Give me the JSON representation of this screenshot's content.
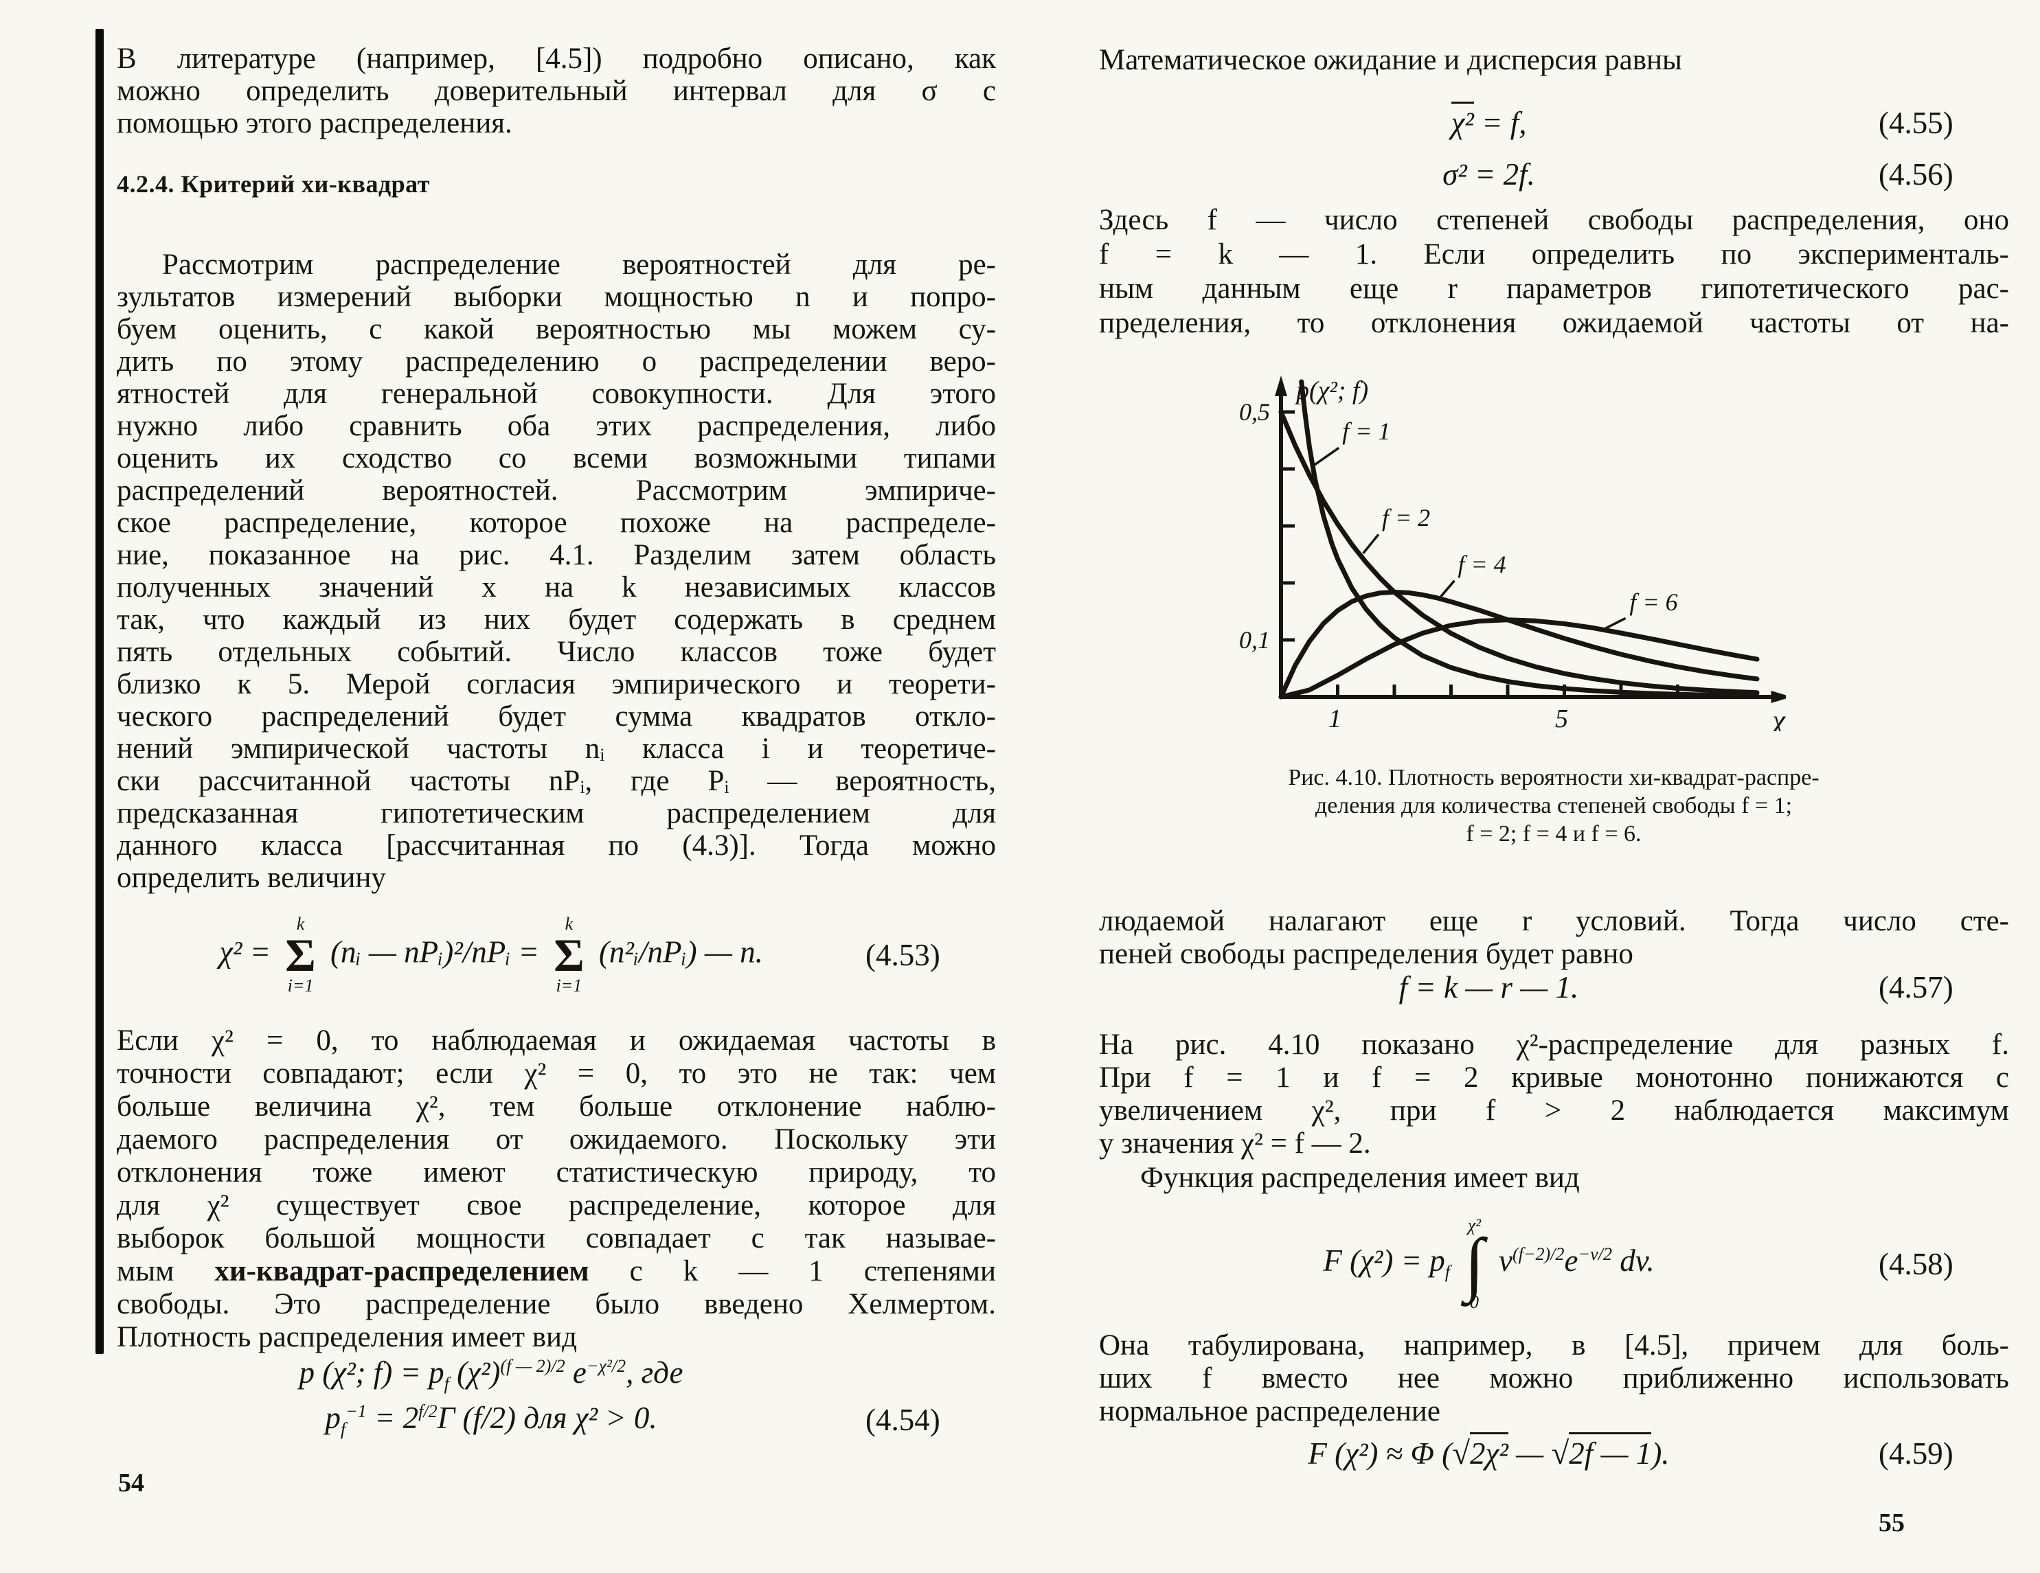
{
  "left": {
    "page_number": "54",
    "intro_lines": [
      "В литературе (например, [4.5]) подробно описано, как",
      "можно определить доверительный интервал для σ с",
      "помощью этого распределения."
    ],
    "heading": "4.2.4. Критерий хи-квадрат",
    "para1_lines": [
      "Рассмотрим распределение вероятностей для ре-",
      "зультатов измерений выборки мощностью n и попро-",
      "буем оценить, с какой вероятностью мы можем су-",
      "дить по этому распределению о распределении веро-",
      "ятностей для генеральной совокупности. Для этого",
      "нужно либо сравнить оба этих распределения, либо",
      "оценить их сходство со всеми возможными типами",
      "распределений вероятностей. Рассмотрим эмпириче-",
      "ское распределение, которое похоже на распределе-",
      "ние, показанное на рис. 4.1. Разделим затем область",
      "полученных значений x на k независимых классов",
      "так, что каждый из них будет содержать в среднем",
      "пять отдельных событий. Число классов тоже будет",
      "близко к 5. Мерой согласия эмпирического и теорети-",
      "ческого распределений будет сумма квадратов откло-",
      "нений эмпирической частоты nᵢ класса i и теоретиче-",
      "ски рассчитанной частоты nPᵢ, где Pᵢ — вероятность,",
      "предсказанная гипотетическим распределением для",
      "данного класса [рассчитанная по (4.3)]. Тогда можно",
      "определить величину"
    ],
    "eq453": {
      "lhs": "χ² =",
      "sum_top": "k",
      "sum_sym": "Σ",
      "sum_bot": "i=1",
      "mid": "(nᵢ — nPᵢ)²/nPᵢ =",
      "post": "(n²ᵢ/nPᵢ) — n.",
      "num": "(4.53)"
    },
    "para2a_lines": [
      "Если χ² = 0, то наблюдаемая и ожидаемая частоты в",
      "точности совпадают; если χ² = 0, то это не так: чем",
      "больше величина χ², тем больше отклонение наблю-",
      "даемого распределения от ожидаемого. Поскольку эти",
      "отклонения тоже имеют статистическую природу, то",
      "для χ² существует свое распределение, которое для",
      "выборок большой мощности совпадает с так называе-"
    ],
    "bold_line": {
      "pre": "мым ",
      "bold": "хи-квадрат-распределением",
      "post": " с k — 1 степенями"
    },
    "para2b_lines": [
      "свободы. Это распределение было введено Хелмертом.",
      "Плотность распределения имеет вид"
    ],
    "eq454": {
      "a": "p (χ²; f) = p",
      "asub": "f",
      "b": " (χ²)",
      "bexp": "(f — 2)/2",
      "c": " e",
      "cexp": "−χ²/2",
      "d": ",  где",
      "e1": "p",
      "e1sub": "f",
      "e1sup": "−1",
      "e2": " = 2",
      "e2exp": "f/2",
      "e3": "Γ (f/2)  для  χ² > 0.",
      "num": "(4.54)"
    }
  },
  "right": {
    "page_number": "55",
    "lead_line": "Математическое ожидание и дисперсия равны",
    "eq455": {
      "over": "χ²",
      "rest": " = f,",
      "num": "(4.55)"
    },
    "eq456": {
      "body": "σ² = 2f.",
      "num": "(4.56)"
    },
    "para_f_lines": [
      "Здесь f — число степеней свободы распределения, оно",
      "f = k — 1. Если определить по эксперименталь-",
      "ным данным еще r параметров гипотетического рас-",
      "пределения, то отклонения ожидаемой частоты от на-"
    ],
    "figure_caption_lines": [
      "Рис. 4.10. Плотность вероятности хи-квадрат-распре-",
      "деления для количества степеней свободы f = 1;",
      "f = 2; f = 4 и f = 6."
    ],
    "para_obs_lines": [
      "людаемой налагают еще r условий. Тогда число сте-",
      "пеней свободы распределения будет равно"
    ],
    "eq457": {
      "body": "f = k — r — 1.",
      "num": "(4.57)"
    },
    "para_fig_lines": [
      "На рис. 4.10 показано χ²-распределение для разных f.",
      "При f = 1 и f = 2 кривые монотонно понижаются с",
      "увеличением χ², при f > 2 наблюдается максимум",
      "у значения χ² = f — 2."
    ],
    "func_line": "Функция распределения имеет вид",
    "eq458": {
      "a": "F (χ²) = p",
      "asub": "f",
      "int_top": "χ²",
      "int_sym": "∫",
      "int_bot": "0",
      "b": "v",
      "bexp": "(f−2)/2",
      "c": "e",
      "cexp": "−v/2",
      "d": " dv.",
      "num": "(4.58)"
    },
    "para_tab_lines": [
      "Она табулирована, например, в [4.5], причем для боль-",
      "ших f вместо нее можно приближенно использовать",
      "нормальное распределение"
    ],
    "eq459": {
      "a": "F (χ²) ≈ Φ (",
      "r1": "√",
      "r1v": "2χ²",
      "mid": " — ",
      "r2": "√",
      "r2v": "2f — 1",
      "b": ").",
      "num": "(4.59)"
    }
  },
  "chart_data": {
    "type": "line",
    "title": "Плотность вероятности хи-квадрат-распределения",
    "xlabel": "χ²",
    "ylabel": "p(χ²; f)",
    "xlim": [
      0,
      8.6
    ],
    "ylim": [
      0,
      0.56
    ],
    "grid": false,
    "legend_position": "inline-labels",
    "x_ticks": [
      1,
      2,
      3,
      4,
      5,
      6,
      7
    ],
    "x_tick_labels": {
      "1": "1",
      "5": "5"
    },
    "y_ticks": [
      0.1,
      0.2,
      0.3,
      0.4,
      0.5
    ],
    "y_tick_labels": {
      "0.1": "0,1",
      "0.5": "0,5"
    },
    "series": [
      {
        "name": "f = 1",
        "points": [
          [
            0.36,
            0.553
          ],
          [
            0.42,
            0.5
          ],
          [
            0.5,
            0.439
          ],
          [
            0.6,
            0.382
          ],
          [
            0.75,
            0.317
          ],
          [
            0.9,
            0.268
          ],
          [
            1,
            0.242
          ],
          [
            1.25,
            0.191
          ],
          [
            1.5,
            0.154
          ],
          [
            1.75,
            0.126
          ],
          [
            2,
            0.104
          ],
          [
            2.5,
            0.0723
          ],
          [
            3,
            0.0514
          ],
          [
            3.5,
            0.0371
          ],
          [
            4,
            0.027
          ],
          [
            4.5,
            0.0198
          ],
          [
            5,
            0.0146
          ],
          [
            5.5,
            0.0109
          ],
          [
            6,
            0.0081
          ],
          [
            6.5,
            0.0061
          ],
          [
            7,
            0.0046
          ],
          [
            7.5,
            0.0034
          ],
          [
            8,
            0.0026
          ],
          [
            8.4,
            0.0021
          ]
        ]
      },
      {
        "name": "f = 2",
        "points": [
          [
            0,
            0.5
          ],
          [
            0.25,
            0.4412
          ],
          [
            0.5,
            0.3894
          ],
          [
            0.75,
            0.3436
          ],
          [
            1,
            0.3033
          ],
          [
            1.25,
            0.2676
          ],
          [
            1.5,
            0.2361
          ],
          [
            1.75,
            0.2083
          ],
          [
            2,
            0.1839
          ],
          [
            2.5,
            0.1433
          ],
          [
            3,
            0.1116
          ],
          [
            3.5,
            0.0869
          ],
          [
            4,
            0.0677
          ],
          [
            4.5,
            0.0527
          ],
          [
            5,
            0.041
          ],
          [
            5.5,
            0.032
          ],
          [
            6,
            0.0249
          ],
          [
            6.5,
            0.0194
          ],
          [
            7,
            0.0151
          ],
          [
            7.5,
            0.0118
          ],
          [
            8,
            0.0092
          ],
          [
            8.4,
            0.0075
          ]
        ]
      },
      {
        "name": "f = 4",
        "points": [
          [
            0,
            0
          ],
          [
            0.25,
            0.0552
          ],
          [
            0.5,
            0.0973
          ],
          [
            0.75,
            0.1289
          ],
          [
            1,
            0.1516
          ],
          [
            1.25,
            0.1673
          ],
          [
            1.5,
            0.1771
          ],
          [
            1.75,
            0.1824
          ],
          [
            2,
            0.1839
          ],
          [
            2.25,
            0.1826
          ],
          [
            2.5,
            0.179
          ],
          [
            2.75,
            0.1738
          ],
          [
            3,
            0.167
          ],
          [
            3.5,
            0.1521
          ],
          [
            4,
            0.1353
          ],
          [
            4.5,
            0.1186
          ],
          [
            5,
            0.1026
          ],
          [
            5.5,
            0.088
          ],
          [
            6,
            0.0747
          ],
          [
            6.5,
            0.063
          ],
          [
            7,
            0.0528
          ],
          [
            7.5,
            0.0441
          ],
          [
            8,
            0.0366
          ],
          [
            8.4,
            0.0315
          ]
        ]
      },
      {
        "name": "f = 6",
        "points": [
          [
            0,
            0
          ],
          [
            0.5,
            0.0122
          ],
          [
            1,
            0.0379
          ],
          [
            1.5,
            0.0664
          ],
          [
            2,
            0.092
          ],
          [
            2.5,
            0.1119
          ],
          [
            3,
            0.1255
          ],
          [
            3.5,
            0.133
          ],
          [
            4,
            0.1353
          ],
          [
            4.5,
            0.1334
          ],
          [
            5,
            0.1283
          ],
          [
            5.5,
            0.1212
          ],
          [
            6,
            0.112
          ],
          [
            6.5,
            0.1025
          ],
          [
            7,
            0.0925
          ],
          [
            7.5,
            0.0826
          ],
          [
            8,
            0.0733
          ],
          [
            8.4,
            0.0661
          ]
        ]
      }
    ],
    "labels": [
      {
        "text": "f = 1",
        "x": 1.08,
        "y": 0.452,
        "leader": [
          [
            1.02,
            0.437
          ],
          [
            0.56,
            0.405
          ]
        ]
      },
      {
        "text": "f = 2",
        "x": 1.78,
        "y": 0.3,
        "leader": [
          [
            1.72,
            0.285
          ],
          [
            1.45,
            0.252
          ]
        ]
      },
      {
        "text": "f = 4",
        "x": 3.12,
        "y": 0.218,
        "leader": [
          [
            3.06,
            0.204
          ],
          [
            2.82,
            0.176
          ]
        ]
      },
      {
        "text": "f = 6",
        "x": 6.15,
        "y": 0.152,
        "leader": [
          [
            6.08,
            0.138
          ],
          [
            5.72,
            0.12
          ]
        ]
      }
    ]
  }
}
